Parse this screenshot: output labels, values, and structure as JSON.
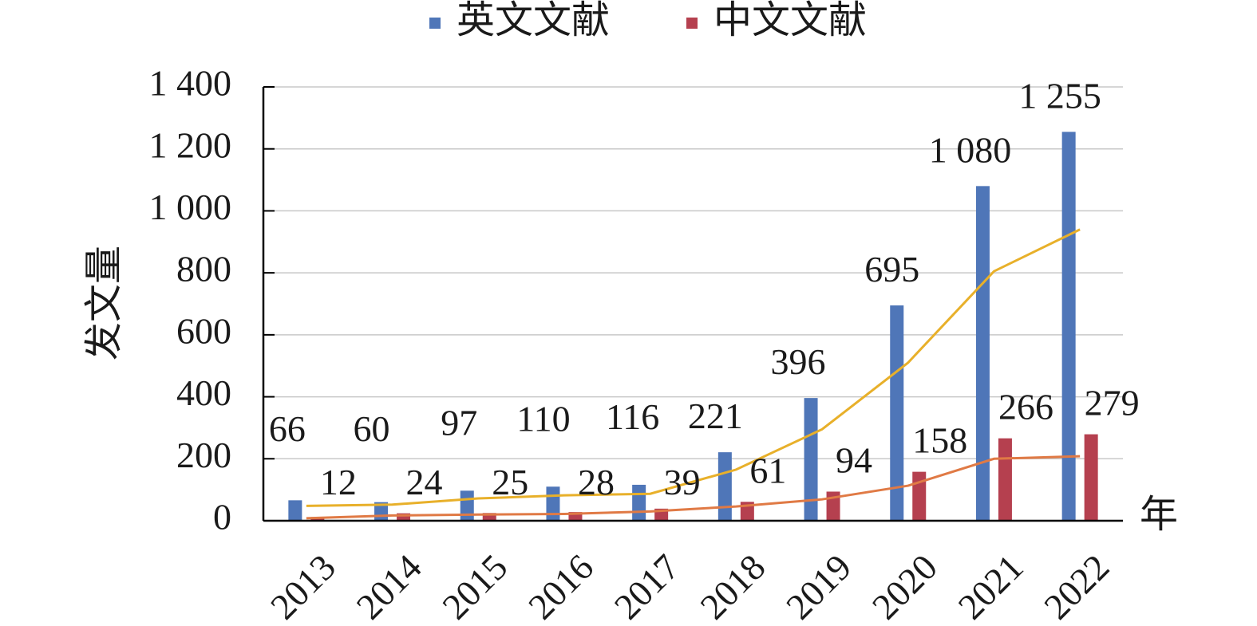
{
  "chart_data": {
    "type": "bar",
    "categories": [
      "2013",
      "2014",
      "2015",
      "2016",
      "2017",
      "2018",
      "2019",
      "2020",
      "2021",
      "2022"
    ],
    "series": [
      {
        "name": "英文文献",
        "color": "#4f76b8",
        "values": [
          66,
          60,
          97,
          110,
          116,
          221,
          396,
          695,
          1080,
          1255
        ],
        "labels": [
          "66",
          "60",
          "97",
          "110",
          "116",
          "221",
          "396",
          "695",
          "1 080",
          "1 255"
        ]
      },
      {
        "name": "中文文献",
        "color": "#b5404f",
        "values": [
          12,
          24,
          25,
          28,
          39,
          61,
          94,
          158,
          266,
          279
        ],
        "labels": [
          "12",
          "24",
          "25",
          "28",
          "39",
          "61",
          "94",
          "158",
          "266",
          "279"
        ]
      }
    ],
    "trend_lines": [
      {
        "color": "#e8b02a",
        "values": [
          48,
          52,
          72,
          82,
          87,
          165,
          295,
          510,
          805,
          940
        ]
      },
      {
        "color": "#e07a45",
        "values": [
          8,
          17,
          20,
          22,
          30,
          46,
          69,
          113,
          200,
          208
        ]
      }
    ],
    "xlabel": "年",
    "ylabel": "发文量",
    "ylim": [
      0,
      1400
    ],
    "yticks": [
      0,
      200,
      400,
      600,
      800,
      1000,
      1200,
      1400
    ],
    "ytick_labels": [
      "0",
      "200",
      "400",
      "600",
      "800",
      "1 000",
      "1 200",
      "1 400"
    ],
    "grid": true,
    "legend_position": "top"
  }
}
